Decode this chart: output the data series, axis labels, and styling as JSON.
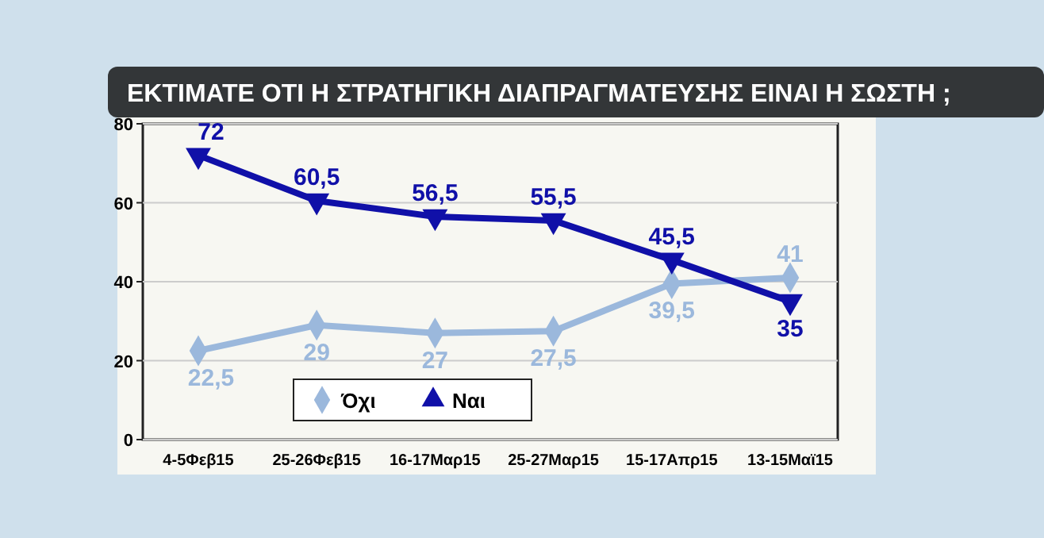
{
  "chart_data": {
    "type": "line",
    "title": "ΕΚΤΙΜΑΤΕ ΟΤΙ Η ΣΤΡΑΤΗΓΙΚΗ ΔΙΑΠΡΑΓΜΑΤΕΥΣΗΣ ΕΙΝΑΙ Η ΣΩΣΤΗ ;",
    "categories": [
      "4-5Φεβ15",
      "25-26Φεβ15",
      "16-17Μαρ15",
      "25-27Μαρ15",
      "15-17Απρ15",
      "13-15Μαϊ15"
    ],
    "series": [
      {
        "name": "Όχι",
        "color": "#9bb8dc",
        "marker": "diamond",
        "values": [
          22.5,
          29,
          27,
          27.5,
          39.5,
          41
        ],
        "value_labels": [
          "22,5",
          "29",
          "27",
          "27,5",
          "39,5",
          "41"
        ]
      },
      {
        "name": "Ναι",
        "color": "#1010a8",
        "marker": "triangle",
        "values": [
          72,
          60.5,
          56.5,
          55.5,
          45.5,
          35
        ],
        "value_labels": [
          "72",
          "60,5",
          "56,5",
          "55,5",
          "45,5",
          "35"
        ]
      }
    ],
    "ylim": [
      0,
      80
    ],
    "yticks": [
      0,
      20,
      40,
      60,
      80
    ],
    "grid": "y",
    "legend": "bottom left"
  }
}
